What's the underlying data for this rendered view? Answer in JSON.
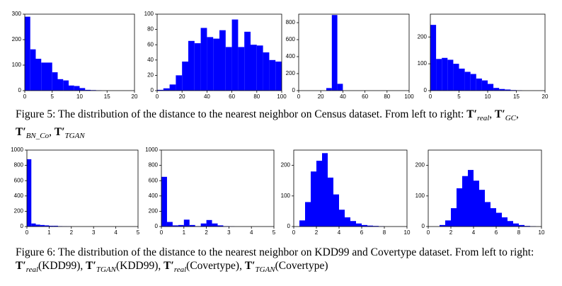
{
  "chart_data": [
    {
      "type": "histogram",
      "color": "#0000ff",
      "xlim": [
        0,
        20
      ],
      "ylim": [
        0,
        300
      ],
      "xticks": [
        0,
        5,
        10,
        15,
        20
      ],
      "yticks": [
        0,
        100,
        200,
        300
      ],
      "bins": [
        0,
        1,
        2,
        3,
        4,
        5,
        6,
        7,
        8,
        9,
        10,
        11,
        12,
        13,
        14
      ],
      "values": [
        290,
        162,
        125,
        110,
        110,
        72,
        45,
        40,
        20,
        18,
        10,
        3,
        2,
        1
      ]
    },
    {
      "type": "histogram",
      "color": "#0000ff",
      "xlim": [
        0,
        100
      ],
      "ylim": [
        0,
        100
      ],
      "xticks": [
        0,
        20,
        40,
        60,
        80,
        100
      ],
      "yticks": [
        0,
        20,
        40,
        60,
        80,
        100
      ],
      "bins": [
        0,
        5,
        10,
        15,
        20,
        25,
        30,
        35,
        40,
        45,
        50,
        55,
        60,
        65,
        70,
        75,
        80,
        85,
        90,
        95,
        100
      ],
      "values": [
        1,
        3,
        8,
        20,
        38,
        65,
        62,
        82,
        70,
        68,
        79,
        57,
        93,
        57,
        77,
        60,
        59,
        50,
        40,
        38
      ]
    },
    {
      "type": "histogram",
      "color": "#0000ff",
      "xlim": [
        0,
        100
      ],
      "ylim": [
        0,
        900
      ],
      "xticks": [
        0,
        20,
        40,
        60,
        80,
        100
      ],
      "yticks": [
        0,
        200,
        400,
        600,
        800
      ],
      "bins": [
        25,
        30,
        35,
        40
      ],
      "values": [
        30,
        890,
        80
      ]
    },
    {
      "type": "histogram",
      "color": "#0000ff",
      "xlim": [
        0,
        20
      ],
      "ylim": [
        0,
        285
      ],
      "xticks": [
        0,
        5,
        10,
        15,
        20
      ],
      "yticks": [
        0,
        100,
        200
      ],
      "bins": [
        0,
        1,
        2,
        3,
        4,
        5,
        6,
        7,
        8,
        9,
        10,
        11,
        12,
        13,
        14,
        15,
        16
      ],
      "values": [
        245,
        118,
        122,
        115,
        100,
        82,
        70,
        62,
        45,
        38,
        25,
        10,
        6,
        4,
        2,
        1
      ]
    },
    {
      "type": "histogram",
      "color": "#0000ff",
      "xlim": [
        0,
        5
      ],
      "ylim": [
        0,
        1000
      ],
      "xticks": [
        0,
        1,
        2,
        3,
        4,
        5
      ],
      "yticks": [
        0,
        200,
        400,
        600,
        800,
        1000
      ],
      "bins": [
        0,
        0.2,
        0.4,
        0.6,
        0.8,
        1,
        1.2,
        1.4,
        1.6,
        1.8,
        2
      ],
      "values": [
        880,
        40,
        25,
        20,
        15,
        10,
        10,
        5,
        3,
        2
      ]
    },
    {
      "type": "histogram",
      "color": "#0000ff",
      "xlim": [
        0,
        5
      ],
      "ylim": [
        0,
        1000
      ],
      "xticks": [
        0,
        1,
        2,
        3,
        4,
        5
      ],
      "yticks": [
        0,
        200,
        400,
        600,
        800,
        1000
      ],
      "bins": [
        0,
        0.25,
        0.5,
        0.75,
        1,
        1.25,
        1.5,
        1.75,
        2,
        2.25,
        2.5,
        2.75,
        3,
        3.25
      ],
      "values": [
        650,
        60,
        15,
        20,
        90,
        20,
        5,
        40,
        85,
        40,
        15,
        5,
        2
      ]
    },
    {
      "type": "histogram",
      "color": "#0000ff",
      "xlim": [
        0,
        10
      ],
      "ylim": [
        0,
        250
      ],
      "xticks": [
        0,
        2,
        4,
        6,
        8,
        10
      ],
      "yticks": [
        0,
        100,
        200
      ],
      "bins": [
        0.5,
        1,
        1.5,
        2,
        2.5,
        3,
        3.5,
        4,
        4.5,
        5,
        5.5,
        6,
        6.5,
        7,
        7.5,
        8
      ],
      "values": [
        20,
        80,
        180,
        215,
        240,
        160,
        105,
        55,
        30,
        18,
        10,
        5,
        3,
        2,
        1
      ]
    },
    {
      "type": "histogram",
      "color": "#0000ff",
      "xlim": [
        0,
        10
      ],
      "ylim": [
        0,
        250
      ],
      "xticks": [
        0,
        2,
        4,
        6,
        8,
        10
      ],
      "yticks": [
        0,
        100,
        200
      ],
      "bins": [
        1,
        1.5,
        2,
        2.5,
        3,
        3.5,
        4,
        4.5,
        5,
        5.5,
        6,
        6.5,
        7,
        7.5,
        8,
        8.5,
        9,
        9.5
      ],
      "values": [
        5,
        20,
        60,
        125,
        165,
        185,
        150,
        120,
        80,
        60,
        45,
        30,
        18,
        10,
        5,
        2,
        1
      ]
    }
  ],
  "captions": [
    {
      "text": "Figure 5: The distribution of the distance to the nearest neighbor on Census dataset. From left to right:",
      "separator": ", ",
      "terms": [
        {
          "base": "T′",
          "sub": "real",
          "suffix": ""
        },
        {
          "base": "T′",
          "sub": "GC",
          "suffix": ""
        },
        {
          "base": "T′",
          "sub": "BN_Co",
          "suffix": ""
        },
        {
          "base": "T′",
          "sub": "TGAN",
          "suffix": ""
        }
      ]
    },
    {
      "text": "Figure 6: The distribution of the distance to the nearest neighbor on KDD99 and Covertype dataset. From left to right:",
      "separator": ", ",
      "terms": [
        {
          "base": "T′",
          "sub": "real",
          "suffix": "(KDD99)"
        },
        {
          "base": "T′",
          "sub": "TGAN",
          "suffix": "(KDD99)"
        },
        {
          "base": "T′",
          "sub": "real",
          "suffix": "(Covertype)"
        },
        {
          "base": "T′",
          "sub": "TGAN",
          "suffix": "(Covertype)"
        }
      ]
    }
  ]
}
